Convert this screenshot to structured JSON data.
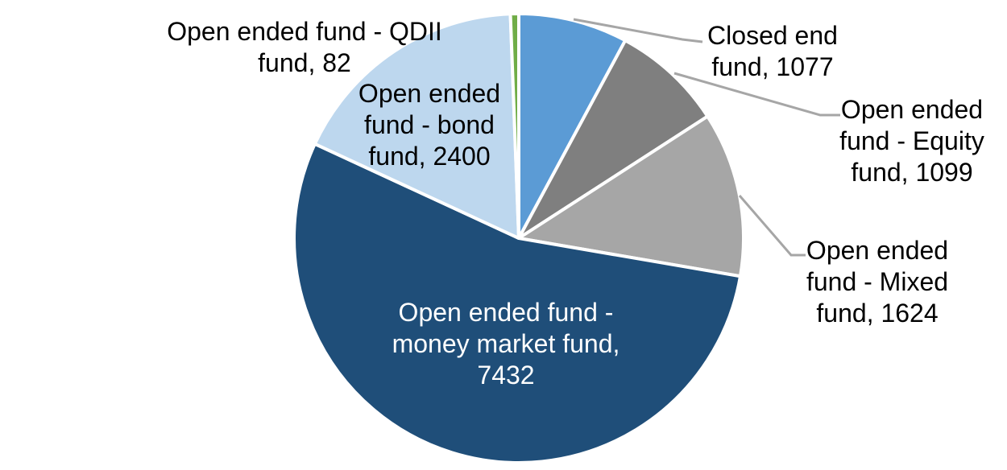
{
  "chart_data": {
    "type": "pie",
    "title": "",
    "total": 13714,
    "start_angle_deg": 0,
    "direction": "clockwise",
    "legend": "none",
    "background_color": "#FFFFFF",
    "label_text_color": "#000000",
    "leader_line_color": "#A6A6A6",
    "slice_border_color": "#FFFFFF",
    "categories": [
      "Closed end fund",
      "Open ended fund - Equity fund",
      "Open ended fund - Mixed fund",
      "Open ended fund - money market fund",
      "Open ended fund - bond fund",
      "Open ended fund - QDII fund"
    ],
    "values": [
      1077,
      1099,
      1624,
      7432,
      2400,
      82
    ],
    "slices": [
      {
        "id": "closed_end",
        "label": "Closed end fund",
        "value": 1077,
        "color": "#5B9BD5",
        "label_lines": [
          "Closed end",
          "fund, 1077"
        ],
        "label_placement": "outside",
        "has_leader_line": true
      },
      {
        "id": "equity",
        "label": "Open ended fund - Equity fund",
        "value": 1099,
        "color": "#7F7F7F",
        "label_lines": [
          "Open ended",
          "fund - Equity",
          "fund, 1099"
        ],
        "label_placement": "outside",
        "has_leader_line": true
      },
      {
        "id": "mixed",
        "label": "Open ended fund - Mixed fund",
        "value": 1624,
        "color": "#A6A6A6",
        "label_lines": [
          "Open ended",
          "fund - Mixed",
          "fund, 1624"
        ],
        "label_placement": "outside",
        "has_leader_line": true
      },
      {
        "id": "money_market",
        "label": "Open ended fund - money market fund",
        "value": 7432,
        "color": "#1F4E79",
        "label_lines": [
          "Open ended fund -",
          "money market fund,",
          "7432"
        ],
        "label_placement": "inside",
        "label_color": "#FFFFFF",
        "has_leader_line": false
      },
      {
        "id": "bond",
        "label": "Open ended fund - bond fund",
        "value": 2400,
        "color": "#BDD7EE",
        "label_lines": [
          "Open ended",
          "fund - bond",
          "fund, 2400"
        ],
        "label_placement": "outside",
        "has_leader_line": false
      },
      {
        "id": "qdii",
        "label": "Open ended fund - QDII fund",
        "value": 82,
        "color": "#70AD47",
        "label_lines": [
          "Open ended fund - QDII",
          "fund, 82"
        ],
        "label_placement": "outside",
        "has_leader_line": false
      }
    ]
  }
}
